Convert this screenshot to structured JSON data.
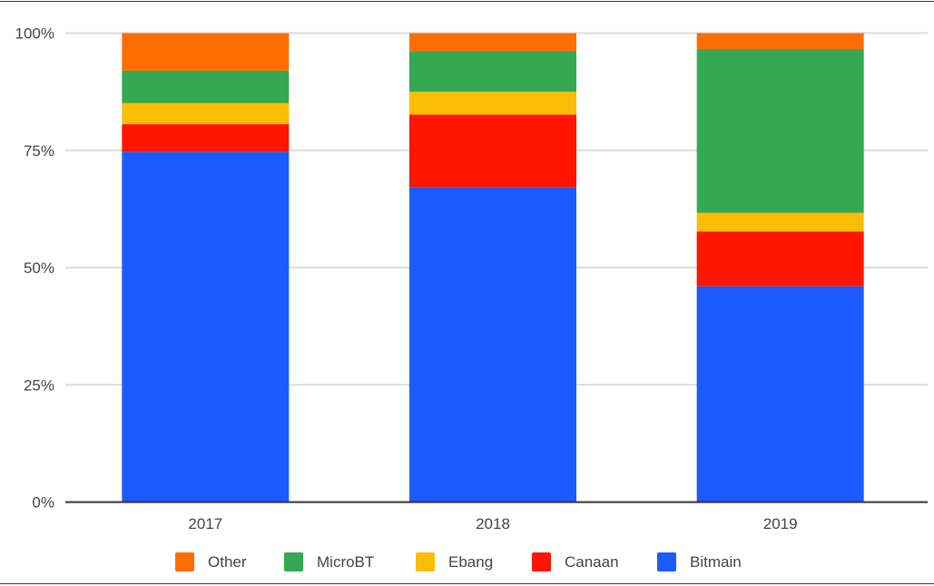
{
  "chart_data": {
    "type": "bar",
    "stacked": true,
    "percent": true,
    "categories": [
      "2017",
      "2018",
      "2019"
    ],
    "series": [
      {
        "name": "Bitmain",
        "color": "#1a5cff",
        "values": [
          74.7,
          67.2,
          46.0
        ]
      },
      {
        "name": "Canaan",
        "color": "#ff1500",
        "values": [
          5.9,
          15.4,
          11.7
        ]
      },
      {
        "name": "Ebang",
        "color": "#fbbc04",
        "values": [
          4.5,
          4.9,
          4.0
        ]
      },
      {
        "name": "MicroBT",
        "color": "#34a853",
        "values": [
          6.9,
          8.7,
          34.9
        ]
      },
      {
        "name": "Other",
        "color": "#ff6d01",
        "values": [
          8.0,
          3.8,
          3.4
        ]
      }
    ],
    "legend_order": [
      "Other",
      "MicroBT",
      "Ebang",
      "Canaan",
      "Bitmain"
    ],
    "yticks": [
      "0%",
      "25%",
      "50%",
      "75%",
      "100%"
    ],
    "ylim": [
      0,
      100
    ],
    "grid": true,
    "legend_position": "bottom",
    "title": "",
    "xlabel": "",
    "ylabel": ""
  }
}
